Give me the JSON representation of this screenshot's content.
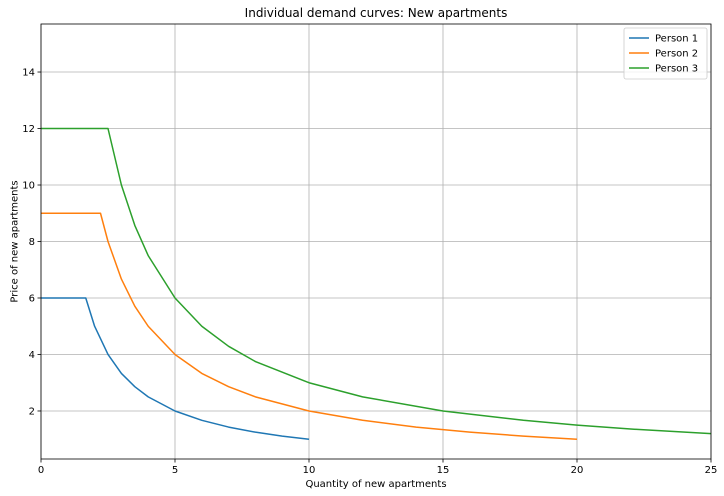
{
  "chart_data": {
    "type": "line",
    "title": "Individual demand curves: New apartments",
    "xlabel": "Quantity of new apartments",
    "ylabel": "Price of new apartments",
    "xlim": [
      0,
      25
    ],
    "ylim": [
      0.3,
      15.7
    ],
    "xticks": [
      0,
      5,
      10,
      15,
      20,
      25
    ],
    "yticks": [
      2,
      4,
      6,
      8,
      10,
      12,
      14
    ],
    "grid": true,
    "legend_position": "top-right",
    "series": [
      {
        "name": "Person 1",
        "color": "#1f77b4",
        "x": [
          0,
          1,
          1.67,
          2,
          2.5,
          3,
          3.5,
          4,
          5,
          6,
          7,
          8,
          9,
          10
        ],
        "y": [
          6,
          6,
          6,
          5,
          4,
          3.33,
          2.86,
          2.5,
          2,
          1.67,
          1.43,
          1.25,
          1.11,
          1
        ]
      },
      {
        "name": "Person 2",
        "color": "#ff7f0e",
        "x": [
          0,
          1,
          2.22,
          2.5,
          3,
          3.5,
          4,
          5,
          6,
          7,
          8,
          10,
          12,
          14,
          16,
          18,
          20
        ],
        "y": [
          9,
          9,
          9,
          8,
          6.67,
          5.71,
          5,
          4,
          3.33,
          2.86,
          2.5,
          2,
          1.67,
          1.43,
          1.25,
          1.11,
          1
        ]
      },
      {
        "name": "Person 3",
        "color": "#2ca02c",
        "x": [
          0,
          1,
          2.5,
          3,
          3.5,
          4,
          5,
          6,
          7,
          8,
          10,
          12,
          15,
          18,
          20,
          22,
          25
        ],
        "y": [
          12,
          12,
          12,
          10,
          8.57,
          7.5,
          6,
          5,
          4.29,
          3.75,
          3,
          2.5,
          2,
          1.67,
          1.5,
          1.36,
          1.2
        ]
      }
    ]
  }
}
